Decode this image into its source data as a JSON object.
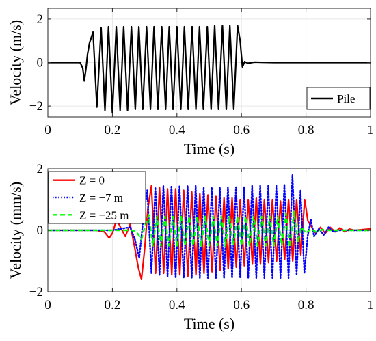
{
  "chart_data": [
    {
      "type": "line",
      "xlabel": "Time (s)",
      "ylabel": "Velocity (m/s)",
      "xlim": [
        0,
        1
      ],
      "ylim": [
        -2.5,
        2.5
      ],
      "xticks": [
        0,
        0.2,
        0.4,
        0.6,
        0.8,
        1
      ],
      "xtick_labels": [
        "0",
        "0.2",
        "0.4",
        "0.6",
        "0.8",
        "1"
      ],
      "yticks": [
        -2,
        0,
        2
      ],
      "ytick_labels": [
        "−2",
        "0",
        "2"
      ],
      "grid": true,
      "legend": "bottom-right",
      "series": [
        {
          "name": "Pile",
          "color": "#000000",
          "style": "solid",
          "x": [
            0,
            0.1,
            0.108,
            0.113,
            0.118,
            0.123,
            0.129,
            0.14,
            0.152,
            0.165,
            0.177,
            0.188,
            0.2,
            0.212,
            0.224,
            0.235,
            0.247,
            0.259,
            0.271,
            0.282,
            0.294,
            0.306,
            0.318,
            0.329,
            0.341,
            0.353,
            0.365,
            0.376,
            0.388,
            0.4,
            0.412,
            0.423,
            0.435,
            0.447,
            0.459,
            0.47,
            0.482,
            0.494,
            0.506,
            0.517,
            0.529,
            0.541,
            0.553,
            0.564,
            0.576,
            0.588,
            0.596,
            0.603,
            0.61,
            0.62,
            0.64,
            0.7,
            0.8,
            1
          ],
          "y": [
            0,
            0,
            -0.25,
            -0.85,
            -0.3,
            0.4,
            0.9,
            1.4,
            -2.05,
            1.6,
            -2.2,
            1.65,
            -2.3,
            1.65,
            -2.2,
            1.65,
            -2.2,
            1.65,
            -2.15,
            1.65,
            -2.15,
            1.65,
            -2.15,
            1.65,
            -2.15,
            1.65,
            -2.15,
            1.65,
            -2.15,
            1.65,
            -2.15,
            1.65,
            -2.15,
            1.65,
            -2.15,
            1.65,
            -2.15,
            1.65,
            -2.15,
            1.7,
            -2.15,
            1.7,
            -2.15,
            1.7,
            -2.15,
            1.7,
            1.0,
            -0.2,
            0.04,
            -0.03,
            0.02,
            0,
            0,
            0
          ]
        }
      ]
    },
    {
      "type": "line",
      "xlabel": "Time (s)",
      "ylabel": "Velocity (mm/s)",
      "xlim": [
        0,
        1
      ],
      "ylim": [
        -2,
        2
      ],
      "xticks": [
        0,
        0.2,
        0.4,
        0.6,
        0.8,
        1
      ],
      "xtick_labels": [
        "0",
        "0.2",
        "0.4",
        "0.6",
        "0.8",
        "1"
      ],
      "yticks": [
        -2,
        0,
        2
      ],
      "ytick_labels": [
        "−2",
        "0",
        "2"
      ],
      "grid": true,
      "legend": "top-left",
      "series": [
        {
          "name": "Z = 0",
          "color": "#ff0000",
          "style": "solid",
          "x": [
            0,
            0.15,
            0.175,
            0.19,
            0.2,
            0.213,
            0.225,
            0.24,
            0.255,
            0.268,
            0.28,
            0.29,
            0.3,
            0.31,
            0.321,
            0.334,
            0.346,
            0.359,
            0.371,
            0.384,
            0.396,
            0.409,
            0.421,
            0.434,
            0.446,
            0.459,
            0.471,
            0.484,
            0.496,
            0.509,
            0.521,
            0.534,
            0.546,
            0.559,
            0.571,
            0.584,
            0.596,
            0.609,
            0.621,
            0.634,
            0.646,
            0.659,
            0.671,
            0.684,
            0.696,
            0.709,
            0.721,
            0.734,
            0.746,
            0.759,
            0.771,
            0.784,
            0.796,
            0.806,
            0.815,
            0.83,
            0.845,
            0.86,
            0.875,
            0.89,
            0.905,
            0.92,
            0.935,
            0.95,
            1
          ],
          "y": [
            0,
            0,
            -0.05,
            -0.25,
            -0.1,
            0.35,
            0.1,
            -0.2,
            0.2,
            -0.5,
            -1.2,
            -1.6,
            -0.6,
            0.7,
            1.45,
            -1.4,
            1.4,
            -1.4,
            1.35,
            -1.45,
            1.35,
            -1.45,
            1.3,
            -1.5,
            1.25,
            -1.45,
            1.2,
            -1.4,
            1.15,
            -1.35,
            1.1,
            -1.3,
            1.05,
            -1.25,
            1.05,
            -1.2,
            1.0,
            -1.15,
            1.0,
            -1.1,
            1.05,
            -1.1,
            1.0,
            -1.05,
            1.0,
            -1.0,
            0.95,
            -0.95,
            1.0,
            -1.0,
            1.0,
            -0.8,
            1.0,
            0.3,
            0.15,
            -0.1,
            0.1,
            -0.1,
            0.1,
            -0.05,
            0.08,
            -0.05,
            0.04,
            0,
            0.05
          ]
        },
        {
          "name": "Z = −7 m",
          "color": "#0000ff",
          "style": "dotted",
          "x": [
            0,
            0.2,
            0.225,
            0.255,
            0.27,
            0.283,
            0.296,
            0.308,
            0.321,
            0.333,
            0.346,
            0.358,
            0.371,
            0.383,
            0.396,
            0.408,
            0.421,
            0.433,
            0.446,
            0.458,
            0.471,
            0.483,
            0.496,
            0.508,
            0.521,
            0.533,
            0.546,
            0.558,
            0.571,
            0.583,
            0.596,
            0.608,
            0.621,
            0.633,
            0.646,
            0.658,
            0.671,
            0.683,
            0.696,
            0.708,
            0.721,
            0.733,
            0.746,
            0.758,
            0.771,
            0.783,
            0.795,
            0.805,
            0.815,
            0.825,
            0.84,
            0.855,
            0.87,
            0.885,
            0.9,
            1
          ],
          "y": [
            0,
            0,
            0.05,
            0.1,
            -0.3,
            -0.9,
            0.4,
            1.3,
            -1.4,
            1.4,
            -1.45,
            1.45,
            -1.5,
            1.45,
            -1.55,
            1.45,
            -1.55,
            1.45,
            -1.55,
            1.45,
            -1.55,
            1.4,
            -1.55,
            1.4,
            -1.55,
            1.4,
            -1.55,
            1.4,
            -1.55,
            1.4,
            -1.55,
            1.4,
            -1.55,
            1.45,
            -1.55,
            1.45,
            -1.55,
            1.45,
            -1.55,
            1.45,
            -1.55,
            1.5,
            -1.55,
            1.8,
            -1.45,
            1.3,
            -1.4,
            -0.2,
            0.35,
            -0.2,
            0.05,
            -0.15,
            0.1,
            -0.05,
            0,
            0
          ]
        },
        {
          "name": "Z = −25 m",
          "color": "#00ff00",
          "style": "dashed",
          "x": [
            0,
            0.26,
            0.275,
            0.29,
            0.3,
            0.313,
            0.325,
            0.338,
            0.35,
            0.363,
            0.375,
            0.388,
            0.4,
            0.413,
            0.425,
            0.438,
            0.45,
            0.463,
            0.475,
            0.488,
            0.5,
            0.513,
            0.525,
            0.538,
            0.55,
            0.563,
            0.575,
            0.588,
            0.6,
            0.613,
            0.625,
            0.638,
            0.65,
            0.663,
            0.675,
            0.688,
            0.7,
            0.713,
            0.725,
            0.738,
            0.75,
            0.763,
            0.775,
            0.785,
            0.8,
            0.815,
            0.83,
            0.85,
            0.87,
            1
          ],
          "y": [
            0,
            0,
            -0.05,
            -0.3,
            0.1,
            0.5,
            -0.5,
            0.45,
            -0.5,
            0.45,
            -0.5,
            0.45,
            -0.5,
            0.45,
            -0.5,
            0.45,
            -0.5,
            0.45,
            -0.5,
            0.45,
            -0.5,
            0.45,
            -0.5,
            0.45,
            -0.5,
            0.45,
            -0.5,
            0.45,
            -0.5,
            0.45,
            -0.5,
            0.45,
            -0.5,
            0.45,
            -0.5,
            0.45,
            -0.5,
            0.45,
            -0.5,
            0.55,
            -0.55,
            0.6,
            -0.4,
            0.1,
            -0.1,
            0.05,
            -0.05,
            0.02,
            0,
            0
          ]
        }
      ]
    }
  ]
}
